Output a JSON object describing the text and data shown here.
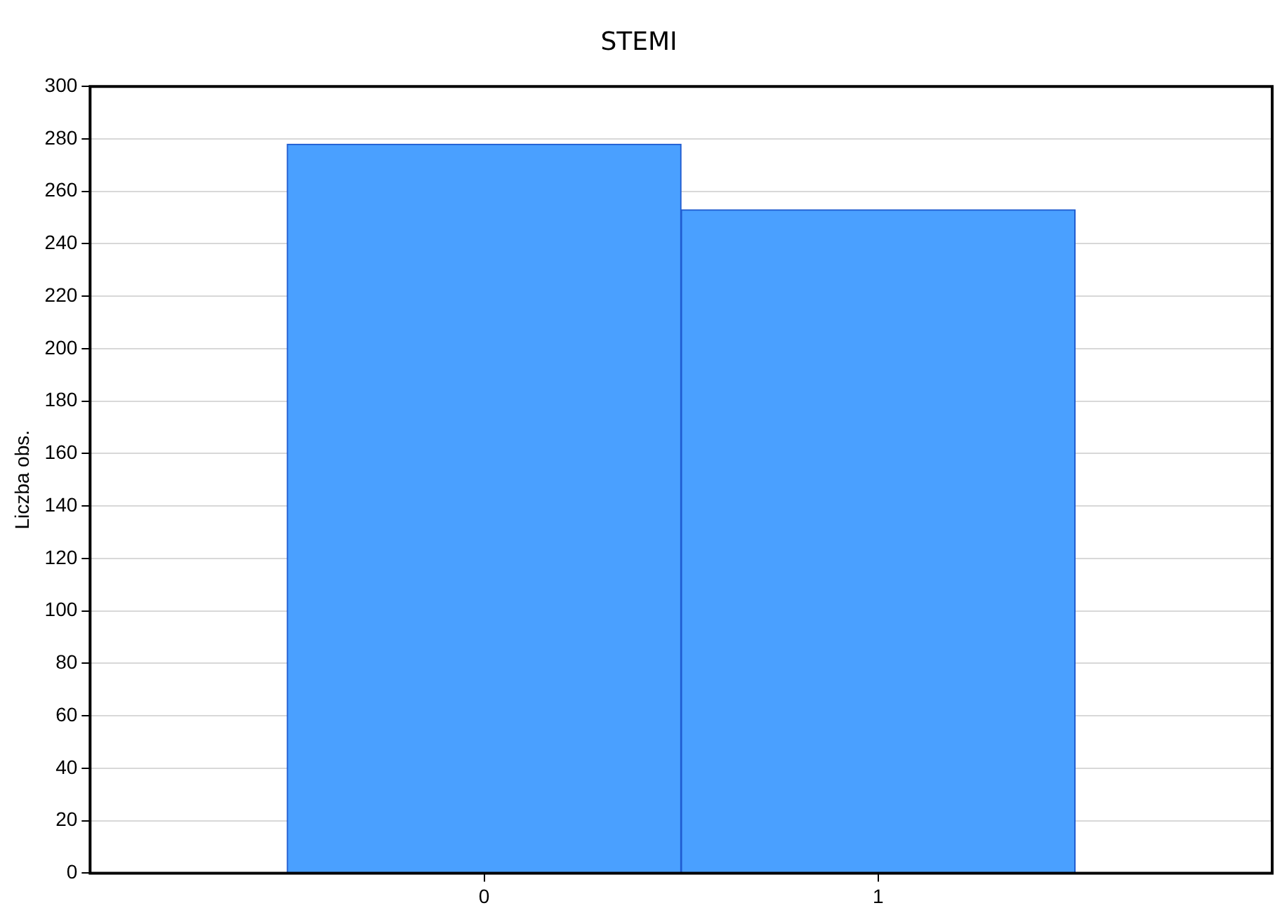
{
  "chart_data": {
    "type": "histogram",
    "title": "STEMI",
    "ylabel": "Liczba obs.",
    "bins": [
      -0.5,
      0.5,
      1.5
    ],
    "values": [
      278,
      253
    ],
    "color": "#4aa0ff",
    "xlim": [
      -1,
      2
    ],
    "xticks": [
      0,
      1
    ],
    "ylim": [
      0,
      300
    ],
    "yticks": [
      0,
      20,
      40,
      60,
      80,
      100,
      120,
      140,
      160,
      180,
      200,
      220,
      240,
      260,
      280,
      300
    ],
    "grid": "y"
  }
}
